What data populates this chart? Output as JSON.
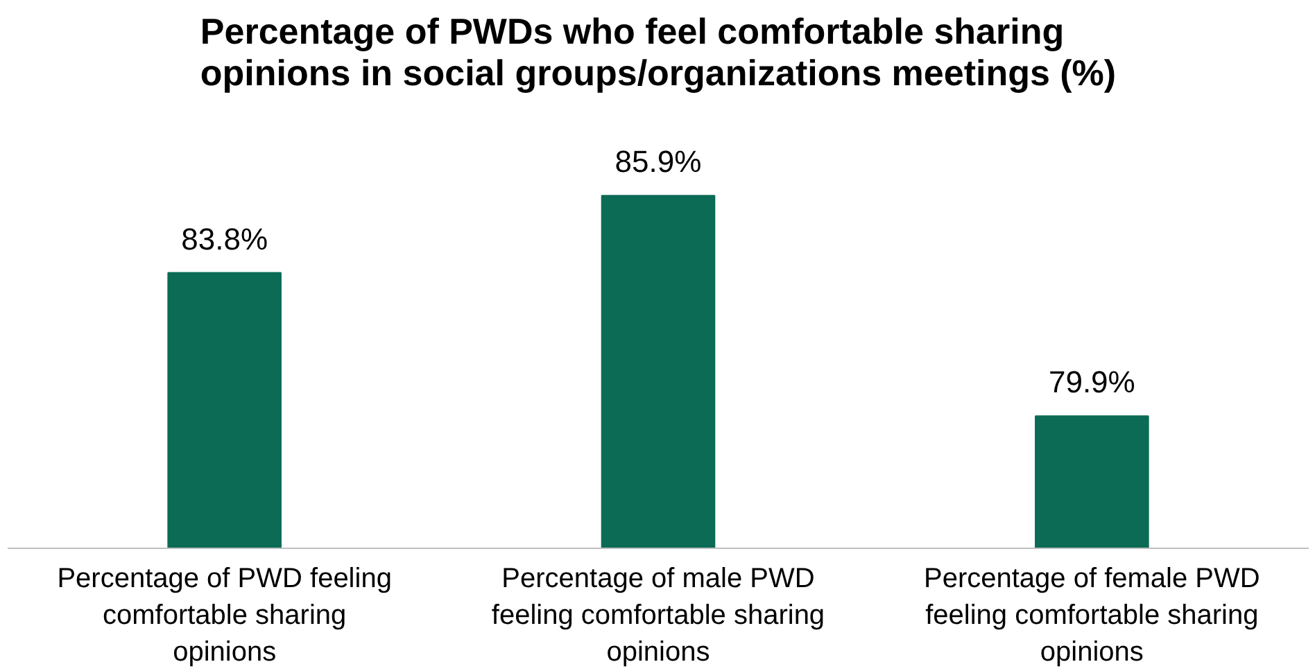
{
  "chart_data": {
    "type": "bar",
    "title": "Percentage of PWDs who feel comfortable sharing opinions in social groups/organizations meetings (%)",
    "categories": [
      "Percentage of PWD feeling comfortable sharing opinions",
      "Percentage of male PWD feeling comfortable sharing opinions",
      "Percentage of female PWD feeling comfortable sharing opinions"
    ],
    "values": [
      83.8,
      85.9,
      79.9
    ],
    "value_labels": [
      "83.8%",
      "85.9%",
      "79.9%"
    ],
    "color": "#0b6b55",
    "ylim": [
      76.3,
      85.9
    ],
    "tick_labels": "x",
    "grid": false
  }
}
